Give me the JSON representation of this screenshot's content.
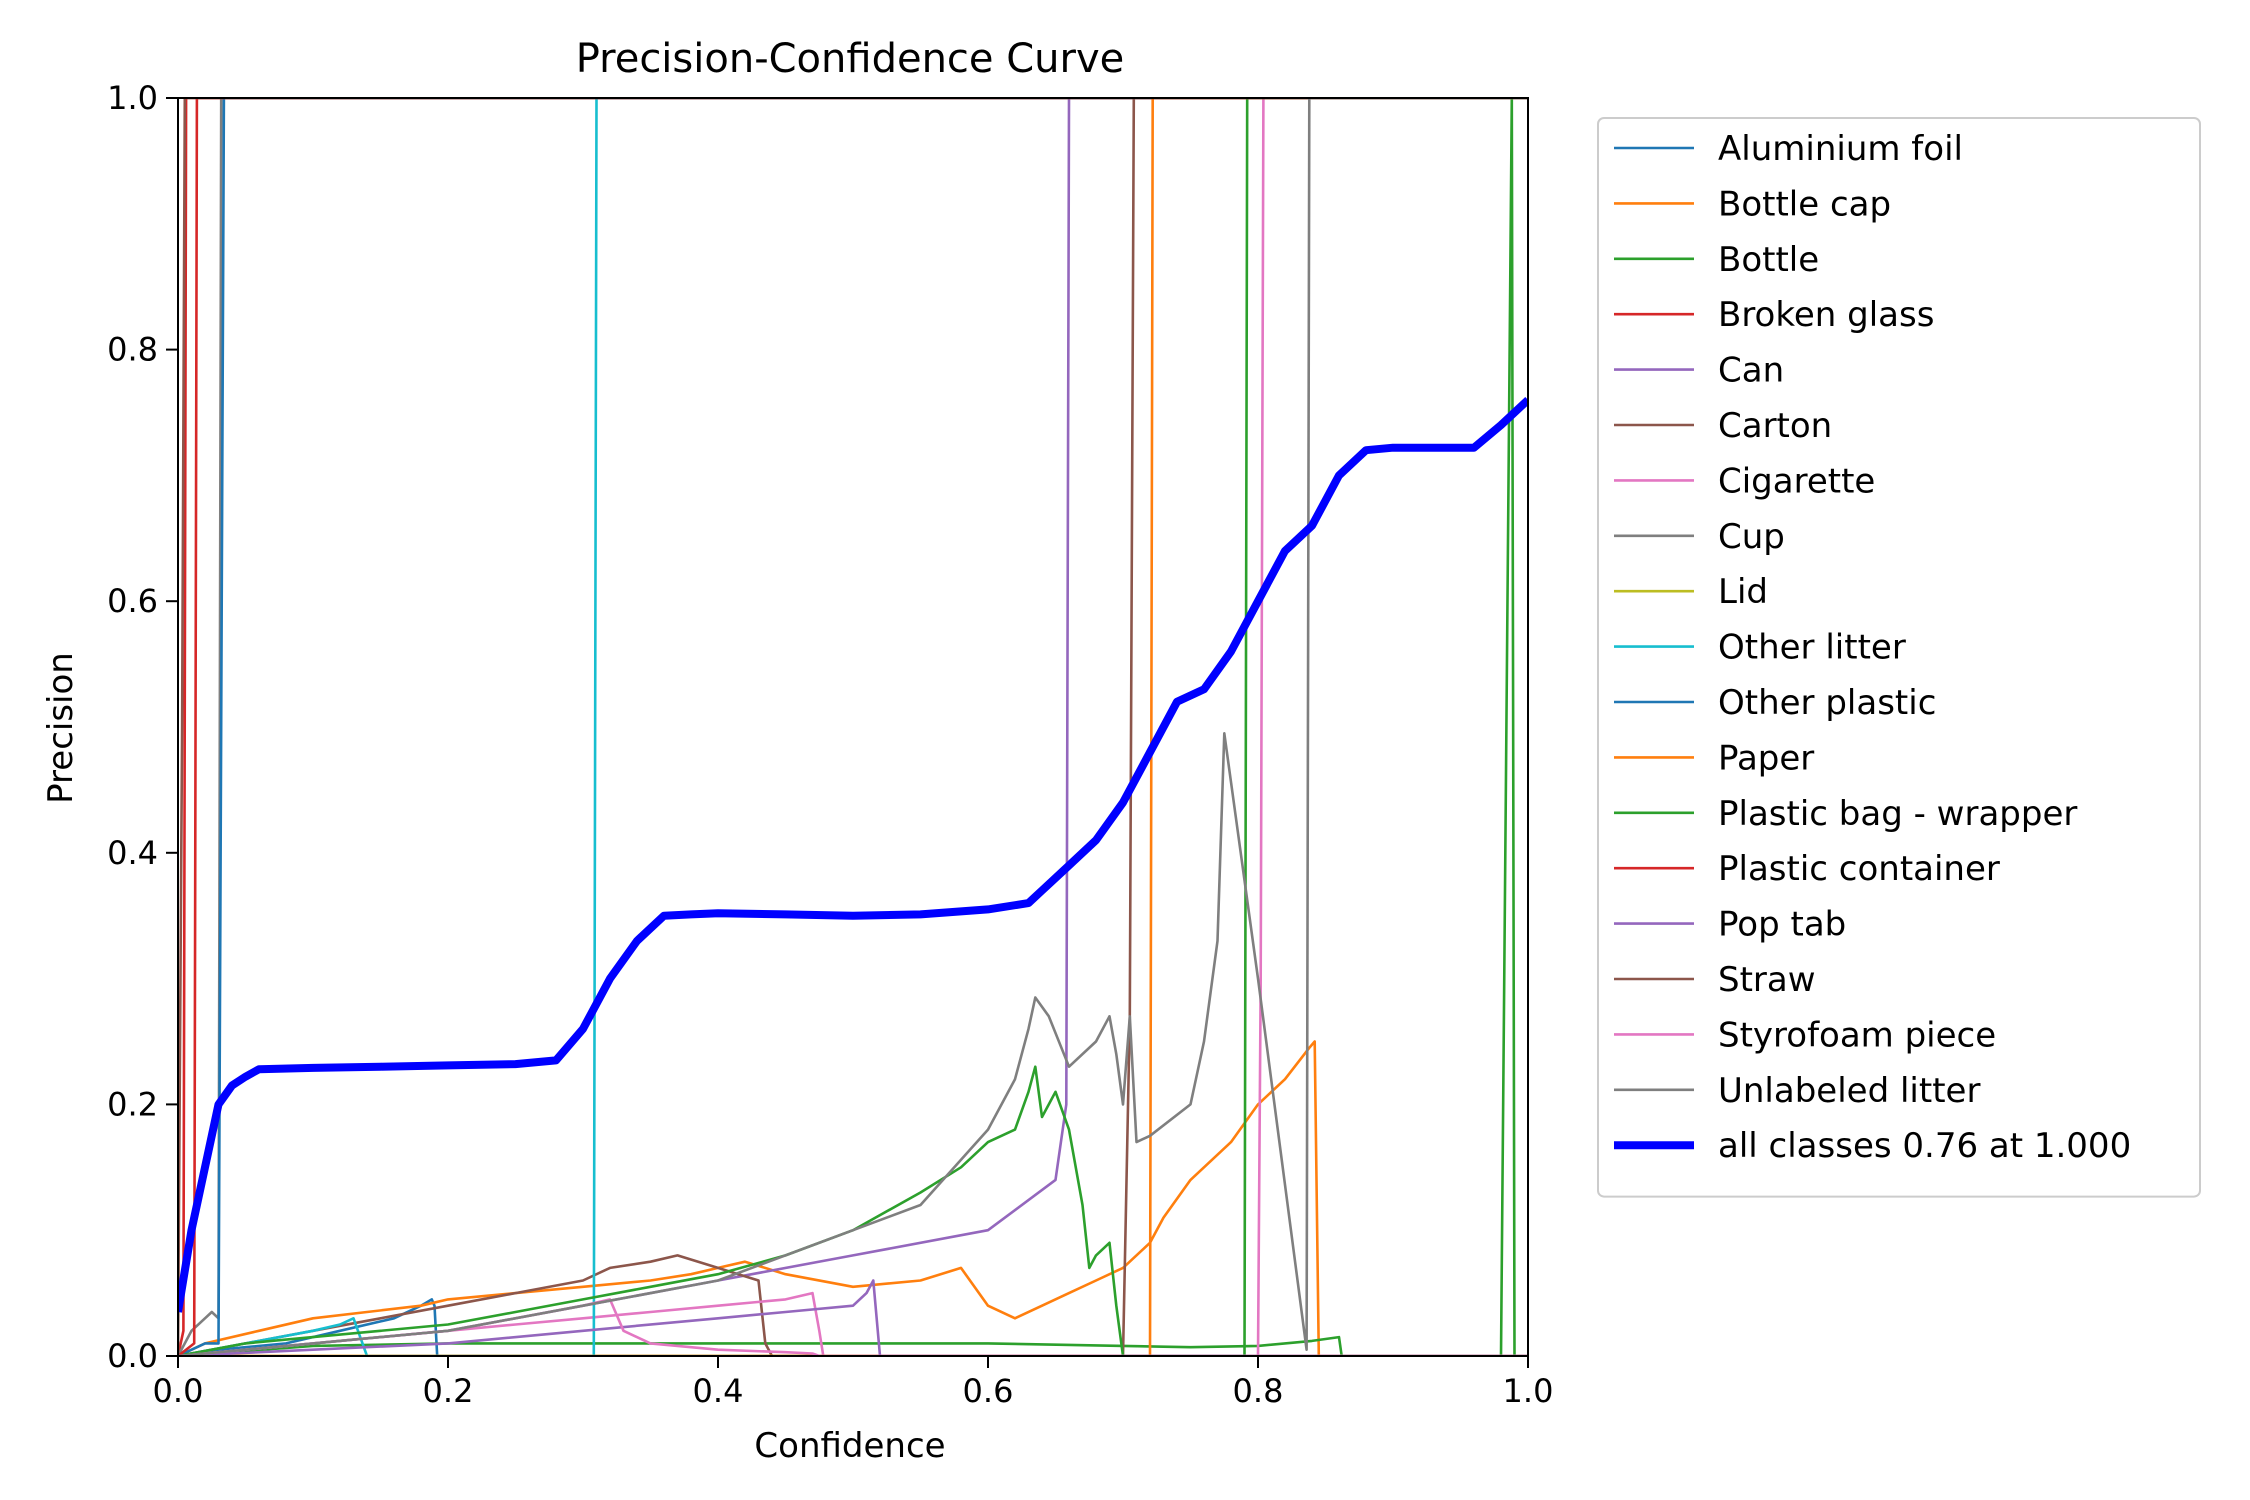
{
  "chart_data": {
    "type": "line",
    "title": "Precision-Confidence Curve",
    "xlabel": "Confidence",
    "ylabel": "Precision",
    "xlim": [
      0,
      1
    ],
    "ylim": [
      0,
      1
    ],
    "xticks": [
      "0.0",
      "0.2",
      "0.4",
      "0.6",
      "0.8",
      "1.0"
    ],
    "yticks": [
      "0.0",
      "0.2",
      "0.4",
      "0.6",
      "0.8",
      "1.0"
    ],
    "grid": false,
    "legend_position": "outside-right",
    "series": [
      {
        "name": "Aluminium foil",
        "color": "#1f77b4",
        "x": [
          0,
          0.03,
          0.08,
          0.12,
          0.16,
          0.18,
          0.188,
          0.19,
          0.192,
          1
        ],
        "y": [
          0,
          0.005,
          0.01,
          0.02,
          0.03,
          0.04,
          0.045,
          0.04,
          0,
          0
        ]
      },
      {
        "name": "Bottle cap",
        "color": "#ff7f0e",
        "x": [
          0,
          0.02,
          0.06,
          0.1,
          0.14,
          0.18,
          0.2,
          0.25,
          0.3,
          0.35,
          0.38,
          0.4,
          0.42,
          0.45,
          0.5,
          0.55,
          0.58,
          0.6,
          0.62,
          0.64,
          0.66,
          0.68,
          0.7,
          0.72,
          0.73,
          0.75,
          0.78,
          0.8,
          0.82,
          0.838,
          0.842,
          0.845,
          1
        ],
        "y": [
          0,
          0.01,
          0.02,
          0.03,
          0.035,
          0.04,
          0.045,
          0.05,
          0.055,
          0.06,
          0.065,
          0.07,
          0.075,
          0.065,
          0.055,
          0.06,
          0.07,
          0.04,
          0.03,
          0.04,
          0.05,
          0.06,
          0.07,
          0.09,
          0.11,
          0.14,
          0.17,
          0.2,
          0.22,
          0.245,
          0.25,
          0,
          0
        ]
      },
      {
        "name": "Bottle",
        "color": "#2ca02c",
        "x": [
          0,
          0.1,
          0.2,
          0.3,
          0.4,
          0.5,
          0.6,
          0.7,
          0.75,
          0.8,
          0.84,
          0.86,
          0.862,
          0.98,
          0.988,
          0.99,
          1
        ],
        "y": [
          0,
          0.008,
          0.01,
          0.01,
          0.01,
          0.01,
          0.01,
          0.008,
          0.007,
          0.008,
          0.012,
          0.015,
          0,
          0,
          1,
          0,
          0
        ]
      },
      {
        "name": "Broken glass",
        "color": "#d62728",
        "x": [
          0,
          0.004,
          0.006,
          0.01,
          1
        ],
        "y": [
          0,
          0.02,
          1,
          1,
          1
        ]
      },
      {
        "name": "Can",
        "color": "#9467bd",
        "x": [
          0,
          0.1,
          0.2,
          0.3,
          0.4,
          0.5,
          0.6,
          0.65,
          0.658,
          0.66,
          1
        ],
        "y": [
          0,
          0.01,
          0.02,
          0.04,
          0.06,
          0.08,
          0.1,
          0.14,
          0.2,
          1,
          1
        ]
      },
      {
        "name": "Carton",
        "color": "#8c564b",
        "x": [
          0,
          0.05,
          0.1,
          0.15,
          0.2,
          0.25,
          0.3,
          0.32,
          0.35,
          0.37,
          0.4,
          0.43,
          0.435,
          0.44,
          0.7,
          0.705,
          0.708,
          1
        ],
        "y": [
          0,
          0.01,
          0.02,
          0.03,
          0.04,
          0.05,
          0.06,
          0.07,
          0.075,
          0.08,
          0.07,
          0.06,
          0.01,
          0,
          0,
          0.27,
          1,
          1
        ]
      },
      {
        "name": "Cigarette",
        "color": "#e377c2",
        "x": [
          0,
          0.05,
          0.1,
          0.15,
          0.2,
          0.25,
          0.3,
          0.35,
          0.4,
          0.45,
          0.47,
          0.475,
          0.478,
          0.8,
          0.802,
          0.804,
          1
        ],
        "y": [
          0,
          0.005,
          0.01,
          0.015,
          0.02,
          0.025,
          0.03,
          0.035,
          0.04,
          0.045,
          0.05,
          0.02,
          0,
          0,
          0.3,
          1,
          1
        ]
      },
      {
        "name": "Cup",
        "color": "#7f7f7f",
        "x": [
          0,
          0.005,
          0.01,
          0.02,
          0.025,
          0.03,
          0.032,
          0.034,
          0.036,
          1
        ],
        "y": [
          0,
          0.01,
          0.02,
          0.03,
          0.035,
          0.03,
          1,
          1,
          1,
          1
        ]
      },
      {
        "name": "Lid",
        "color": "#bcbd22",
        "x": [
          0,
          1
        ],
        "y": [
          0,
          0
        ]
      },
      {
        "name": "Other litter",
        "color": "#17becf",
        "x": [
          0,
          0.05,
          0.1,
          0.12,
          0.13,
          0.14,
          0.2,
          0.3,
          0.308,
          0.31,
          1
        ],
        "y": [
          0,
          0.01,
          0.02,
          0.025,
          0.03,
          0,
          0,
          0,
          0,
          1,
          1
        ]
      },
      {
        "name": "Other plastic",
        "color": "#1f77b4",
        "x": [
          0,
          0.02,
          0.03,
          0.034,
          0.036,
          0.33,
          0.334,
          0.336,
          1
        ],
        "y": [
          0,
          0.01,
          0.01,
          1,
          1,
          1,
          1,
          1,
          1
        ]
      },
      {
        "name": "Paper",
        "color": "#ff7f0e",
        "x": [
          0,
          0.3,
          0.72,
          0.722,
          0.86,
          0.862,
          1
        ],
        "y": [
          0,
          0,
          0,
          1,
          1,
          1,
          1
        ]
      },
      {
        "name": "Plastic bag - wrapper",
        "color": "#2ca02c",
        "x": [
          0,
          0.05,
          0.1,
          0.15,
          0.2,
          0.25,
          0.3,
          0.35,
          0.4,
          0.45,
          0.5,
          0.55,
          0.58,
          0.6,
          0.62,
          0.63,
          0.635,
          0.64,
          0.645,
          0.65,
          0.66,
          0.67,
          0.675,
          0.68,
          0.69,
          0.695,
          0.7,
          0.705,
          0.79,
          0.792,
          1
        ],
        "y": [
          0,
          0.01,
          0.015,
          0.02,
          0.025,
          0.035,
          0.045,
          0.055,
          0.065,
          0.08,
          0.1,
          0.13,
          0.15,
          0.17,
          0.18,
          0.21,
          0.23,
          0.19,
          0.2,
          0.21,
          0.18,
          0.12,
          0.07,
          0.08,
          0.09,
          0.04,
          0,
          0,
          0,
          1,
          1
        ]
      },
      {
        "name": "Plastic container",
        "color": "#d62728",
        "x": [
          0,
          0.012,
          0.014,
          0.016,
          1
        ],
        "y": [
          0,
          0.01,
          1,
          1,
          1
        ]
      },
      {
        "name": "Pop tab",
        "color": "#9467bd",
        "x": [
          0,
          0.1,
          0.2,
          0.3,
          0.4,
          0.45,
          0.5,
          0.51,
          0.515,
          0.52,
          1
        ],
        "y": [
          0,
          0.005,
          0.01,
          0.02,
          0.03,
          0.035,
          0.04,
          0.05,
          0.06,
          0,
          0
        ]
      },
      {
        "name": "Straw",
        "color": "#8c564b",
        "x": [
          0,
          0.003,
          0.005,
          1
        ],
        "y": [
          0,
          0.5,
          1,
          1
        ]
      },
      {
        "name": "Styrofoam piece",
        "color": "#e377c2",
        "x": [
          0,
          0.1,
          0.2,
          0.3,
          0.32,
          0.33,
          0.35,
          0.4,
          0.45,
          0.47,
          0.475,
          1
        ],
        "y": [
          0,
          0.01,
          0.02,
          0.04,
          0.045,
          0.02,
          0.01,
          0.005,
          0.003,
          0.002,
          0,
          0
        ]
      },
      {
        "name": "Unlabeled litter",
        "color": "#7f7f7f",
        "x": [
          0,
          0.1,
          0.2,
          0.3,
          0.4,
          0.5,
          0.55,
          0.6,
          0.62,
          0.63,
          0.635,
          0.645,
          0.66,
          0.68,
          0.69,
          0.695,
          0.7,
          0.705,
          0.71,
          0.72,
          0.75,
          0.76,
          0.77,
          0.775,
          0.8,
          0.836,
          0.838,
          0.84,
          1
        ],
        "y": [
          0,
          0.01,
          0.02,
          0.04,
          0.06,
          0.1,
          0.12,
          0.18,
          0.22,
          0.26,
          0.285,
          0.27,
          0.23,
          0.25,
          0.27,
          0.24,
          0.2,
          0.27,
          0.17,
          0.175,
          0.2,
          0.25,
          0.33,
          0.495,
          0.3,
          0.005,
          1,
          1,
          1
        ]
      },
      {
        "name": "all classes 0.76 at 1.000",
        "color": "#0000ff",
        "bold": true,
        "x": [
          0,
          0.01,
          0.02,
          0.03,
          0.04,
          0.05,
          0.06,
          0.1,
          0.15,
          0.2,
          0.25,
          0.28,
          0.3,
          0.32,
          0.34,
          0.36,
          0.38,
          0.4,
          0.45,
          0.5,
          0.55,
          0.6,
          0.63,
          0.64,
          0.66,
          0.68,
          0.7,
          0.72,
          0.74,
          0.76,
          0.78,
          0.8,
          0.82,
          0.84,
          0.86,
          0.88,
          0.9,
          0.92,
          0.94,
          0.96,
          0.98,
          1.0
        ],
        "y": [
          0.035,
          0.1,
          0.15,
          0.2,
          0.215,
          0.222,
          0.228,
          0.229,
          0.23,
          0.231,
          0.232,
          0.235,
          0.26,
          0.3,
          0.33,
          0.35,
          0.351,
          0.352,
          0.351,
          0.35,
          0.351,
          0.355,
          0.36,
          0.37,
          0.39,
          0.41,
          0.44,
          0.48,
          0.52,
          0.53,
          0.56,
          0.6,
          0.64,
          0.66,
          0.7,
          0.72,
          0.722,
          0.722,
          0.722,
          0.722,
          0.74,
          0.76
        ]
      }
    ]
  }
}
